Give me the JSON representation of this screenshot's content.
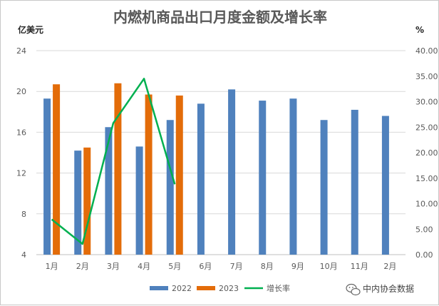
{
  "chart_data": {
    "type": "bar",
    "title": "内燃机商品出口月度金额及增长率",
    "y_left_unit": "亿美元",
    "y_right_unit": "%",
    "categories": [
      "1月",
      "2月",
      "3月",
      "4月",
      "5月",
      "6月",
      "7月",
      "8月",
      "9月",
      "10月",
      "11月",
      "2月"
    ],
    "series": [
      {
        "name": "2022",
        "kind": "bar",
        "axis": "left",
        "color": "#4f81bd",
        "values": [
          19.3,
          14.2,
          16.5,
          14.6,
          17.2,
          18.8,
          20.2,
          19.1,
          19.3,
          17.2,
          18.2,
          17.6
        ]
      },
      {
        "name": "2023",
        "kind": "bar",
        "axis": "left",
        "color": "#e36c09",
        "values": [
          20.7,
          14.5,
          20.8,
          19.7,
          19.6,
          null,
          null,
          null,
          null,
          null,
          null,
          null
        ]
      },
      {
        "name": "增长率",
        "kind": "line",
        "axis": "right",
        "color": "#00b050",
        "values": [
          6.9,
          2.1,
          25.8,
          34.5,
          13.8,
          null,
          null,
          null,
          null,
          null,
          null,
          null
        ]
      }
    ],
    "y_left_lim": [
      4,
      24
    ],
    "y_left_ticks": [
      "4",
      "8",
      "12",
      "16",
      "20",
      "24"
    ],
    "y_right_lim": [
      0,
      40
    ],
    "y_right_ticks": [
      "0.00",
      "5.00",
      "10.00",
      "15.00",
      "20.00",
      "25.00",
      "30.00",
      "35.00",
      "40.00"
    ],
    "grid": true,
    "legend_position": "bottom"
  },
  "watermark": "中内协会数据",
  "watermark_icon": "wechat-icon"
}
